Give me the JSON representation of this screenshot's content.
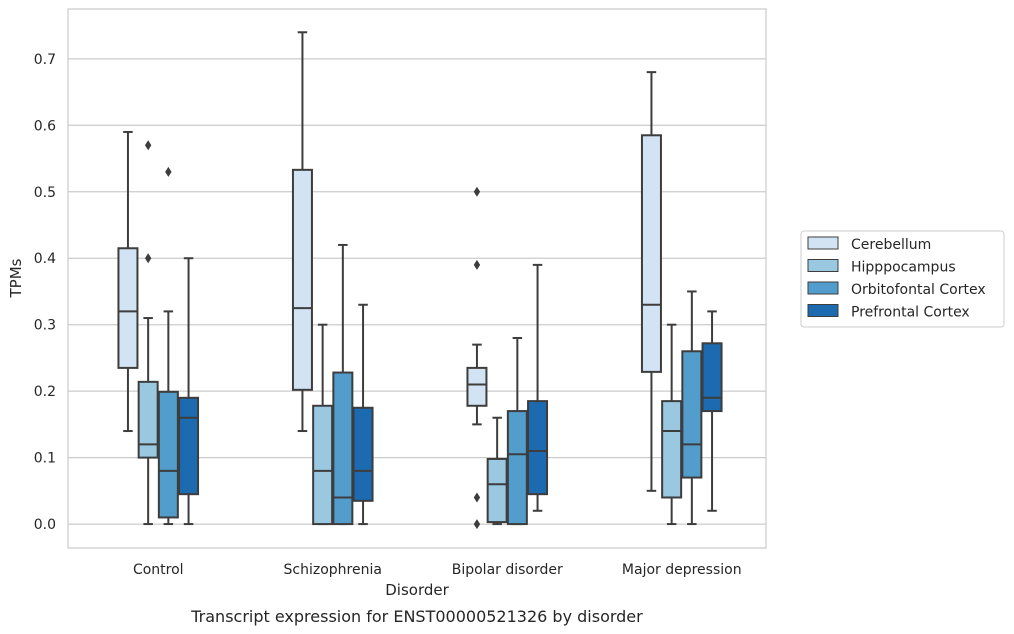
{
  "chart_data": {
    "type": "box",
    "caption": "Transcript expression for ENST00000521326 by disorder",
    "xlabel": "Disorder",
    "ylabel": "TPMs",
    "ylim": [
      -0.036,
      0.775
    ],
    "yticks": [
      0.0,
      0.1,
      0.2,
      0.3,
      0.4,
      0.5,
      0.6,
      0.7
    ],
    "ytick_labels": [
      "0.0",
      "0.1",
      "0.2",
      "0.3",
      "0.4",
      "0.5",
      "0.6",
      "0.7"
    ],
    "grid": "horizontal",
    "legend_position": "right",
    "categories": [
      "Control",
      "Schizophrenia",
      "Bipolar disorder",
      "Major depression"
    ],
    "series": [
      {
        "name": "Cerebellum",
        "color": "#d2e3f3",
        "boxes": [
          {
            "whislo": 0.14,
            "q1": 0.235,
            "med": 0.32,
            "q3": 0.415,
            "whishi": 0.59,
            "fliers": []
          },
          {
            "whislo": 0.14,
            "q1": 0.202,
            "med": 0.325,
            "q3": 0.533,
            "whishi": 0.74,
            "fliers": []
          },
          {
            "whislo": 0.15,
            "q1": 0.178,
            "med": 0.21,
            "q3": 0.235,
            "whishi": 0.27,
            "fliers": [
              0.0,
              0.04,
              0.39,
              0.5
            ]
          },
          {
            "whislo": 0.05,
            "q1": 0.229,
            "med": 0.33,
            "q3": 0.585,
            "whishi": 0.68,
            "fliers": []
          }
        ]
      },
      {
        "name": "Hipppocampus",
        "color": "#9ac8e0",
        "boxes": [
          {
            "whislo": 0.0,
            "q1": 0.1,
            "med": 0.12,
            "q3": 0.214,
            "whishi": 0.31,
            "fliers": [
              0.4,
              0.57
            ]
          },
          {
            "whislo": 0.0,
            "q1": 0.0,
            "med": 0.08,
            "q3": 0.178,
            "whishi": 0.3,
            "fliers": []
          },
          {
            "whislo": 0.0,
            "q1": 0.003,
            "med": 0.06,
            "q3": 0.098,
            "whishi": 0.16,
            "fliers": []
          },
          {
            "whislo": 0.0,
            "q1": 0.04,
            "med": 0.14,
            "q3": 0.185,
            "whishi": 0.3,
            "fliers": []
          }
        ]
      },
      {
        "name": "Orbitofontal Cortex",
        "color": "#529dcc",
        "boxes": [
          {
            "whislo": 0.0,
            "q1": 0.01,
            "med": 0.08,
            "q3": 0.199,
            "whishi": 0.32,
            "fliers": [
              0.53
            ]
          },
          {
            "whislo": 0.0,
            "q1": 0.0,
            "med": 0.04,
            "q3": 0.228,
            "whishi": 0.42,
            "fliers": []
          },
          {
            "whislo": 0.0,
            "q1": 0.0,
            "med": 0.105,
            "q3": 0.17,
            "whishi": 0.28,
            "fliers": []
          },
          {
            "whislo": 0.0,
            "q1": 0.07,
            "med": 0.12,
            "q3": 0.26,
            "whishi": 0.35,
            "fliers": []
          }
        ]
      },
      {
        "name": "Prefrontal Cortex",
        "color": "#1c6aaf",
        "boxes": [
          {
            "whislo": 0.0,
            "q1": 0.045,
            "med": 0.16,
            "q3": 0.19,
            "whishi": 0.4,
            "fliers": []
          },
          {
            "whislo": 0.0,
            "q1": 0.035,
            "med": 0.08,
            "q3": 0.175,
            "whishi": 0.33,
            "fliers": []
          },
          {
            "whislo": 0.02,
            "q1": 0.045,
            "med": 0.11,
            "q3": 0.185,
            "whishi": 0.39,
            "fliers": []
          },
          {
            "whislo": 0.02,
            "q1": 0.17,
            "med": 0.19,
            "q3": 0.272,
            "whishi": 0.32,
            "fliers": []
          }
        ]
      }
    ]
  }
}
